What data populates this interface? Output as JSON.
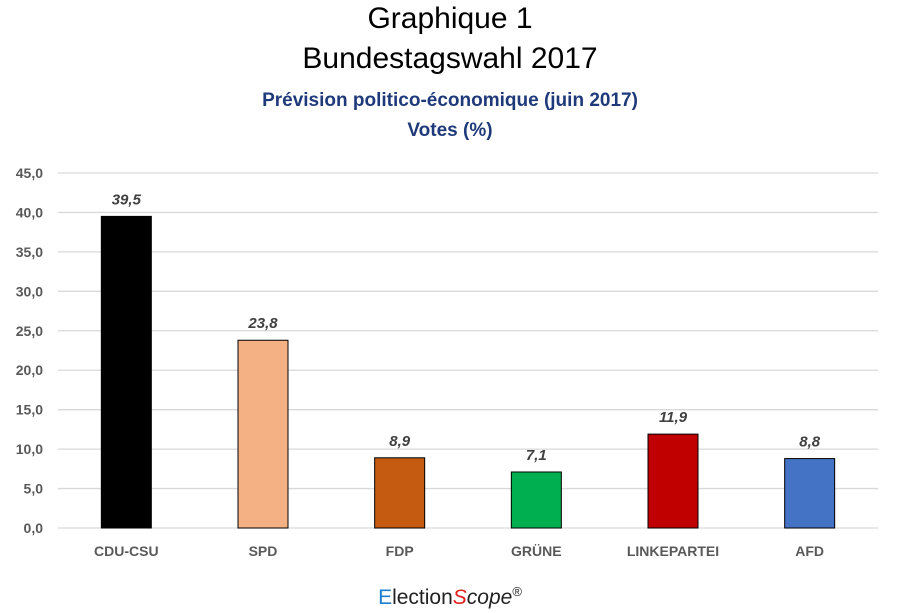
{
  "chart_data": {
    "type": "bar",
    "title": "Graphique 1",
    "title2": "Bundestagswahl 2017",
    "subtitle": "Prévision politico-économique (juin 2017)",
    "subtitle2": "Votes (%)",
    "categories": [
      "CDU-CSU",
      "SPD",
      "FDP",
      "GRÜNE",
      "LINKEPARTEI",
      "AFD"
    ],
    "values": [
      39.5,
      23.8,
      8.9,
      7.1,
      11.9,
      8.8
    ],
    "data_labels": [
      "39,5",
      "23,8",
      "8,9",
      "7,1",
      "11,9",
      "8,8"
    ],
    "colors": [
      "#000000",
      "#f4b183",
      "#c55a11",
      "#00b050",
      "#c00000",
      "#4472c4"
    ],
    "ylim": [
      0,
      45
    ],
    "yticks": [
      0,
      5,
      10,
      15,
      20,
      25,
      30,
      35,
      40,
      45
    ],
    "ytick_labels": [
      "0,0",
      "5,0",
      "10,0",
      "15,0",
      "20,0",
      "25,0",
      "30,0",
      "35,0",
      "40,0",
      "45,0"
    ],
    "grid": true,
    "xlabel": "",
    "ylabel": ""
  },
  "logo": {
    "e": "E",
    "lection": "lection",
    "s": "S",
    "cope": "cope",
    "reg": "®"
  }
}
